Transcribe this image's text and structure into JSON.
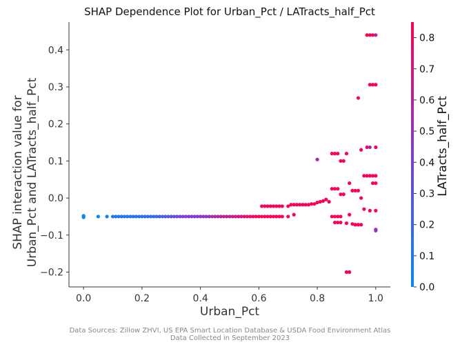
{
  "chart_data": {
    "type": "scatter",
    "title": "SHAP Dependence Plot for Urban_Pct / LATracts_half_Pct",
    "xlabel": "Urban_Pct",
    "ylabel_lines": [
      "SHAP interaction value for",
      "Urban_Pct and LATracts_half_Pct"
    ],
    "xlim": [
      -0.05,
      1.05
    ],
    "ylim": [
      -0.24,
      0.475
    ],
    "x_ticks": [
      0.0,
      0.2,
      0.4,
      0.6,
      0.8,
      1.0
    ],
    "x_tick_labels": [
      "0.0",
      "0.2",
      "0.4",
      "0.6",
      "0.8",
      "1.0"
    ],
    "y_ticks": [
      -0.2,
      -0.1,
      0.0,
      0.1,
      0.2,
      0.3,
      0.4
    ],
    "y_tick_labels": [
      "−0.2",
      "−0.1",
      "0.0",
      "0.1",
      "0.2",
      "0.3",
      "0.4"
    ],
    "grid": false,
    "colorbar": {
      "label": "LATracts_half_Pct",
      "range": [
        0,
        0.85
      ],
      "ticks": [
        0.0,
        0.1,
        0.2,
        0.3,
        0.4,
        0.5,
        0.6,
        0.7,
        0.8
      ],
      "tick_labels": [
        "0.0",
        "0.1",
        "0.2",
        "0.3",
        "0.4",
        "0.5",
        "0.6",
        "0.7",
        "0.8"
      ],
      "colors": [
        "#008afb",
        "#7f3cd0",
        "#ff0052"
      ]
    },
    "points": [
      [
        0.0,
        -0.05,
        0.0
      ],
      [
        0.0,
        -0.052,
        0.0
      ],
      [
        0.0,
        -0.048,
        0.0
      ],
      [
        0.05,
        -0.05,
        0.05
      ],
      [
        0.08,
        -0.05,
        0.07
      ],
      [
        0.1,
        -0.05,
        0.08
      ],
      [
        0.11,
        -0.05,
        0.09
      ],
      [
        0.12,
        -0.05,
        0.1
      ],
      [
        0.13,
        -0.05,
        0.1
      ],
      [
        0.14,
        -0.05,
        0.11
      ],
      [
        0.15,
        -0.05,
        0.12
      ],
      [
        0.16,
        -0.05,
        0.12
      ],
      [
        0.17,
        -0.05,
        0.13
      ],
      [
        0.18,
        -0.05,
        0.14
      ],
      [
        0.19,
        -0.05,
        0.15
      ],
      [
        0.2,
        -0.05,
        0.15
      ],
      [
        0.21,
        -0.05,
        0.16
      ],
      [
        0.22,
        -0.05,
        0.17
      ],
      [
        0.23,
        -0.05,
        0.18
      ],
      [
        0.24,
        -0.05,
        0.19
      ],
      [
        0.25,
        -0.05,
        0.2
      ],
      [
        0.26,
        -0.05,
        0.22
      ],
      [
        0.27,
        -0.05,
        0.24
      ],
      [
        0.28,
        -0.05,
        0.26
      ],
      [
        0.29,
        -0.05,
        0.28
      ],
      [
        0.3,
        -0.05,
        0.3
      ],
      [
        0.31,
        -0.05,
        0.32
      ],
      [
        0.32,
        -0.05,
        0.35
      ],
      [
        0.33,
        -0.05,
        0.37
      ],
      [
        0.34,
        -0.05,
        0.39
      ],
      [
        0.35,
        -0.05,
        0.41
      ],
      [
        0.36,
        -0.05,
        0.42
      ],
      [
        0.37,
        -0.05,
        0.43
      ],
      [
        0.38,
        -0.05,
        0.44
      ],
      [
        0.39,
        -0.05,
        0.45
      ],
      [
        0.4,
        -0.05,
        0.46
      ],
      [
        0.41,
        -0.05,
        0.47
      ],
      [
        0.42,
        -0.05,
        0.48
      ],
      [
        0.43,
        -0.05,
        0.5
      ],
      [
        0.44,
        -0.05,
        0.52
      ],
      [
        0.45,
        -0.05,
        0.54
      ],
      [
        0.46,
        -0.05,
        0.56
      ],
      [
        0.47,
        -0.05,
        0.58
      ],
      [
        0.48,
        -0.05,
        0.6
      ],
      [
        0.49,
        -0.05,
        0.62
      ],
      [
        0.5,
        -0.05,
        0.64
      ],
      [
        0.51,
        -0.05,
        0.66
      ],
      [
        0.52,
        -0.05,
        0.68
      ],
      [
        0.53,
        -0.05,
        0.7
      ],
      [
        0.54,
        -0.05,
        0.72
      ],
      [
        0.55,
        -0.05,
        0.74
      ],
      [
        0.56,
        -0.05,
        0.76
      ],
      [
        0.57,
        -0.05,
        0.78
      ],
      [
        0.58,
        -0.05,
        0.8
      ],
      [
        0.59,
        -0.05,
        0.82
      ],
      [
        0.6,
        -0.05,
        0.83
      ],
      [
        0.61,
        -0.05,
        0.84
      ],
      [
        0.62,
        -0.05,
        0.84
      ],
      [
        0.63,
        -0.05,
        0.84
      ],
      [
        0.64,
        -0.05,
        0.84
      ],
      [
        0.65,
        -0.05,
        0.84
      ],
      [
        0.66,
        -0.05,
        0.84
      ],
      [
        0.67,
        -0.05,
        0.84
      ],
      [
        0.68,
        -0.05,
        0.84
      ],
      [
        0.61,
        -0.022,
        0.84
      ],
      [
        0.62,
        -0.022,
        0.84
      ],
      [
        0.63,
        -0.022,
        0.84
      ],
      [
        0.64,
        -0.022,
        0.84
      ],
      [
        0.65,
        -0.022,
        0.84
      ],
      [
        0.66,
        -0.022,
        0.84
      ],
      [
        0.67,
        -0.022,
        0.84
      ],
      [
        0.68,
        -0.022,
        0.84
      ],
      [
        0.7,
        -0.022,
        0.84
      ],
      [
        0.71,
        -0.018,
        0.84
      ],
      [
        0.72,
        -0.018,
        0.84
      ],
      [
        0.73,
        -0.018,
        0.84
      ],
      [
        0.74,
        -0.018,
        0.84
      ],
      [
        0.75,
        -0.018,
        0.84
      ],
      [
        0.76,
        -0.018,
        0.84
      ],
      [
        0.77,
        -0.018,
        0.84
      ],
      [
        0.78,
        -0.016,
        0.84
      ],
      [
        0.79,
        -0.016,
        0.84
      ],
      [
        0.8,
        -0.012,
        0.84
      ],
      [
        0.81,
        -0.01,
        0.84
      ],
      [
        0.82,
        -0.008,
        0.84
      ],
      [
        0.83,
        -0.004,
        0.84
      ],
      [
        0.7,
        -0.05,
        0.84
      ],
      [
        0.72,
        -0.045,
        0.84
      ],
      [
        0.8,
        0.104,
        0.55
      ],
      [
        0.84,
        -0.01,
        0.84
      ],
      [
        0.85,
        0.025,
        0.84
      ],
      [
        0.86,
        0.025,
        0.84
      ],
      [
        0.87,
        0.025,
        0.84
      ],
      [
        0.85,
        0.12,
        0.84
      ],
      [
        0.86,
        0.12,
        0.84
      ],
      [
        0.87,
        0.12,
        0.84
      ],
      [
        0.88,
        0.1,
        0.84
      ],
      [
        0.89,
        0.1,
        0.84
      ],
      [
        0.88,
        0.01,
        0.84
      ],
      [
        0.89,
        0.01,
        0.84
      ],
      [
        0.85,
        -0.05,
        0.84
      ],
      [
        0.86,
        -0.05,
        0.84
      ],
      [
        0.87,
        -0.05,
        0.84
      ],
      [
        0.88,
        -0.05,
        0.84
      ],
      [
        0.86,
        -0.066,
        0.84
      ],
      [
        0.87,
        -0.066,
        0.84
      ],
      [
        0.88,
        -0.066,
        0.84
      ],
      [
        0.9,
        -0.068,
        0.84
      ],
      [
        0.9,
        -0.2,
        0.84
      ],
      [
        0.91,
        -0.2,
        0.84
      ],
      [
        0.9,
        0.12,
        0.84
      ],
      [
        0.91,
        0.04,
        0.84
      ],
      [
        0.92,
        0.02,
        0.84
      ],
      [
        0.93,
        0.02,
        0.84
      ],
      [
        0.94,
        0.02,
        0.84
      ],
      [
        0.92,
        -0.07,
        0.84
      ],
      [
        0.93,
        -0.072,
        0.84
      ],
      [
        0.94,
        -0.072,
        0.84
      ],
      [
        0.95,
        -0.072,
        0.84
      ],
      [
        0.91,
        -0.045,
        0.84
      ],
      [
        0.94,
        0.27,
        0.84
      ],
      [
        0.95,
        0.13,
        0.84
      ],
      [
        0.96,
        0.06,
        0.84
      ],
      [
        0.97,
        0.06,
        0.84
      ],
      [
        0.98,
        0.06,
        0.84
      ],
      [
        0.96,
        -0.03,
        0.84
      ],
      [
        0.97,
        0.137,
        0.84
      ],
      [
        0.98,
        0.137,
        0.55
      ],
      [
        0.99,
        0.04,
        0.84
      ],
      [
        1.0,
        0.04,
        0.84
      ],
      [
        0.98,
        -0.034,
        0.84
      ],
      [
        1.0,
        -0.034,
        0.84
      ],
      [
        0.99,
        0.06,
        0.84
      ],
      [
        1.0,
        0.06,
        0.84
      ],
      [
        1.0,
        0.137,
        0.84
      ],
      [
        0.98,
        0.306,
        0.84
      ],
      [
        0.99,
        0.306,
        0.84
      ],
      [
        1.0,
        0.306,
        0.84
      ],
      [
        0.97,
        0.44,
        0.84
      ],
      [
        0.98,
        0.44,
        0.84
      ],
      [
        0.99,
        0.44,
        0.84
      ],
      [
        1.0,
        0.44,
        0.6
      ],
      [
        1.0,
        -0.085,
        0.6
      ],
      [
        1.0,
        -0.088,
        0.45
      ],
      [
        0.95,
        0.0,
        0.84
      ],
      [
        0.93,
        -0.072,
        0.84
      ]
    ]
  },
  "footer": {
    "line1": "Data Sources: Zillow ZHVI, US EPA Smart Location Database & USDA Food Environment Atlas",
    "line2": "Data Collected in September 2023"
  }
}
